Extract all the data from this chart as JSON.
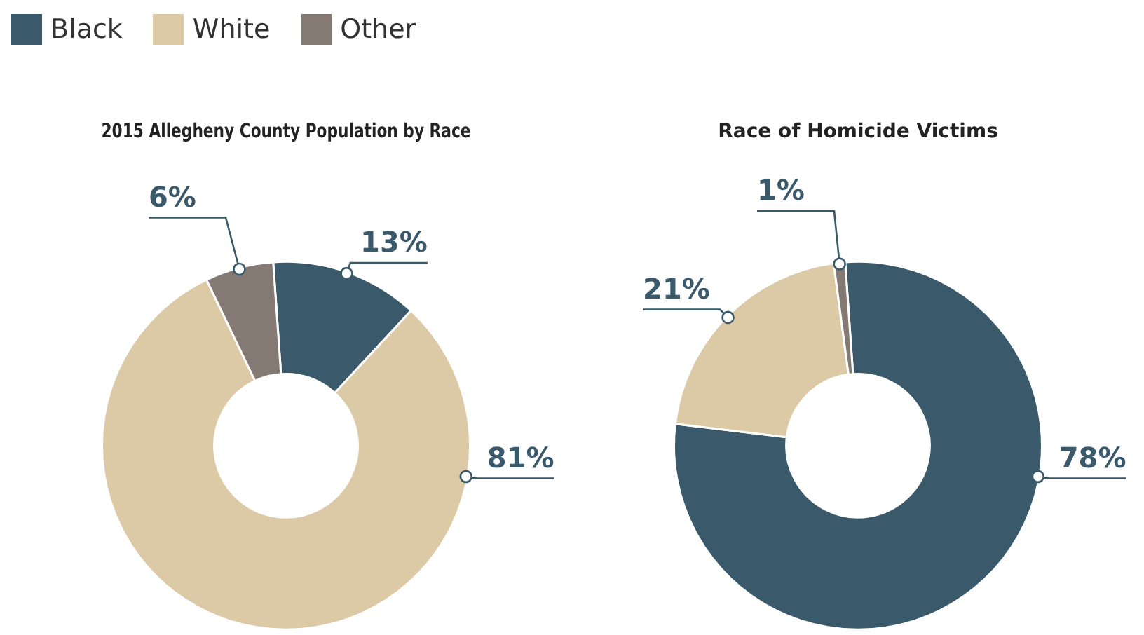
{
  "chart_data": [
    {
      "type": "donut",
      "title": "2015 Allegheny County Population by Race",
      "categories": [
        "Black",
        "White",
        "Other"
      ],
      "values": [
        13,
        81,
        6
      ],
      "colors": [
        "#3a5a6c",
        "#dcc9a6",
        "#857973"
      ],
      "value_labels": [
        "13%",
        "81%",
        "6%"
      ],
      "legend": "top left"
    },
    {
      "type": "donut",
      "title": "Race of Homicide Victims",
      "categories": [
        null,
        null,
        null
      ],
      "values": [
        78,
        21,
        1
      ],
      "colors": [
        "#3a5a6c",
        "#dcc9a6",
        "#857973"
      ],
      "value_labels": [
        "78%",
        "21%",
        "1%"
      ],
      "legend": false
    }
  ]
}
